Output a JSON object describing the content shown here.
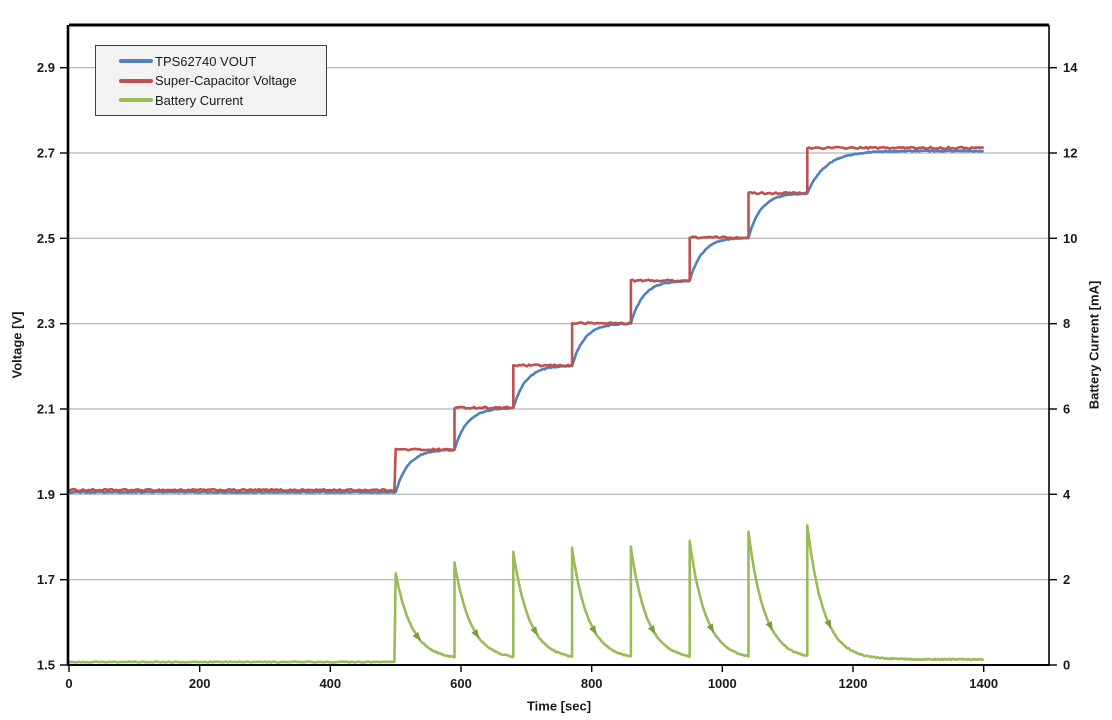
{
  "chart_data": {
    "type": "line",
    "title": "",
    "xlabel": "Time [sec]",
    "ylabel_left": "Voltage [V]",
    "ylabel_right": "Battery Current [mA]",
    "grid": "horizontal-only",
    "legend_position": "top-left-inside",
    "x_axis": {
      "min": 0,
      "max": 1500,
      "ticks": [
        0,
        200,
        400,
        600,
        800,
        1000,
        1200,
        1400
      ],
      "tick_labels": [
        "0",
        "200",
        "400",
        "600",
        "800",
        "1000",
        "1200",
        "1400"
      ]
    },
    "y_left_axis": {
      "min": 1.5,
      "max": 3.0,
      "ticks": [
        1.5,
        1.7,
        1.9,
        2.1,
        2.3,
        2.5,
        2.7,
        2.9
      ],
      "tick_labels": [
        "1.5",
        "1.7",
        "1.9",
        "2.1",
        "2.3",
        "2.5",
        "2.7",
        "2.9"
      ]
    },
    "y_right_axis": {
      "min": 0,
      "max": 15,
      "ticks": [
        0,
        2,
        4,
        6,
        8,
        10,
        12,
        14
      ],
      "tick_labels": [
        "0",
        "2",
        "4",
        "6",
        "8",
        "10",
        "12",
        "14"
      ]
    },
    "step_times_sec": [
      500,
      590,
      680,
      770,
      860,
      950,
      1040,
      1130
    ],
    "data_end_sec": 1400,
    "series": [
      {
        "name": "TPS62740 VOUT",
        "color": "#4F81BD",
        "axis": "left",
        "shape": "exponential-charge",
        "initial_v": 1.905,
        "final_v": 2.705,
        "tau_sec": 19,
        "tau_last_sec": 28,
        "key_points": [
          [
            0,
            1.905
          ],
          [
            500,
            1.905
          ],
          [
            590,
            2.0
          ],
          [
            680,
            2.1
          ],
          [
            770,
            2.2
          ],
          [
            860,
            2.3
          ],
          [
            950,
            2.4
          ],
          [
            1040,
            2.5
          ],
          [
            1130,
            2.6
          ],
          [
            1260,
            2.705
          ],
          [
            1400,
            2.705
          ]
        ]
      },
      {
        "name": "Super-Capacitor Voltage",
        "color": "#C0504D",
        "axis": "left",
        "shape": "staircase",
        "initial_v": 1.91,
        "step_levels_v": [
          2.005,
          2.103,
          2.202,
          2.301,
          2.401,
          2.502,
          2.606,
          2.712
        ],
        "key_points": [
          [
            0,
            1.91
          ],
          [
            500,
            2.005
          ],
          [
            590,
            2.103
          ],
          [
            680,
            2.202
          ],
          [
            770,
            2.301
          ],
          [
            860,
            2.401
          ],
          [
            950,
            2.502
          ],
          [
            1040,
            2.606
          ],
          [
            1130,
            2.712
          ],
          [
            1400,
            2.712
          ]
        ]
      },
      {
        "name": "Battery Current",
        "color": "#9BBB59",
        "axis": "right",
        "shape": "spike-exponential-decay",
        "baseline_ma": 0.07,
        "tail_ma": 0.13,
        "tau_sec": 25,
        "peaks_ma": [
          2.16,
          2.41,
          2.65,
          2.74,
          2.77,
          2.91,
          3.12,
          3.28
        ],
        "arrow_marker_color": "#7E9D3F",
        "key_points": [
          [
            0,
            0.07
          ],
          [
            500,
            2.16
          ],
          [
            590,
            2.41
          ],
          [
            680,
            2.65
          ],
          [
            770,
            2.74
          ],
          [
            860,
            2.77
          ],
          [
            950,
            2.91
          ],
          [
            1040,
            3.12
          ],
          [
            1130,
            3.28
          ],
          [
            1400,
            0.13
          ]
        ]
      }
    ],
    "colors": {
      "gridline": "#A6A6A6",
      "axis": "#000000",
      "text": "#1a1a1a",
      "legend_bg": "#F2F2F2",
      "legend_border": "#404040"
    }
  }
}
